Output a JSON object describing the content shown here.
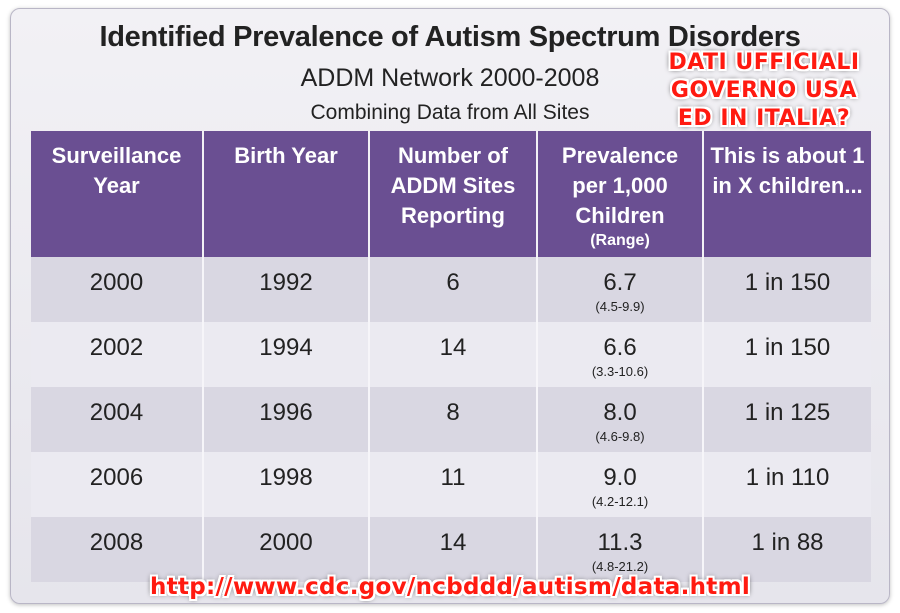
{
  "title": "Identified Prevalence of Autism Spectrum Disorders",
  "subtitle": "ADDM Network 2000-2008",
  "subtitle2": "Combining Data from All Sites",
  "stamp_lines": [
    "DATI UFFICIALI",
    "GOVERNO USA",
    "ED IN ITALIA?"
  ],
  "columns": [
    {
      "label": "Surveillance Year",
      "note": ""
    },
    {
      "label": "Birth Year",
      "note": ""
    },
    {
      "label": "Number of ADDM Sites Reporting",
      "note": ""
    },
    {
      "label": "Prevalence per 1,000 Children",
      "note": "(Range)"
    },
    {
      "label": "This is about 1 in X children...",
      "note": ""
    }
  ],
  "rows": [
    {
      "surveillance_year": "2000",
      "birth_year": "1992",
      "sites": "6",
      "prevalence": "6.7",
      "range": "(4.5-9.9)",
      "ratio": "1 in 150"
    },
    {
      "surveillance_year": "2002",
      "birth_year": "1994",
      "sites": "14",
      "prevalence": "6.6",
      "range": "(3.3-10.6)",
      "ratio": "1 in 150"
    },
    {
      "surveillance_year": "2004",
      "birth_year": "1996",
      "sites": "8",
      "prevalence": "8.0",
      "range": "(4.6-9.8)",
      "ratio": "1 in 125"
    },
    {
      "surveillance_year": "2006",
      "birth_year": "1998",
      "sites": "11",
      "prevalence": "9.0",
      "range": "(4.2-12.1)",
      "ratio": "1 in 110"
    },
    {
      "surveillance_year": "2008",
      "birth_year": "2000",
      "sites": "14",
      "prevalence": "11.3",
      "range": "(4.8-21.2)",
      "ratio": "1 in 88"
    }
  ],
  "source_url": "http://www.cdc.gov/ncbddd/autism/data.html",
  "colors": {
    "header_purple": "#6a4f92",
    "overlay_red": "#ff1a10",
    "row_dark": "#d9d7e2",
    "row_light": "#ebeaf1"
  }
}
